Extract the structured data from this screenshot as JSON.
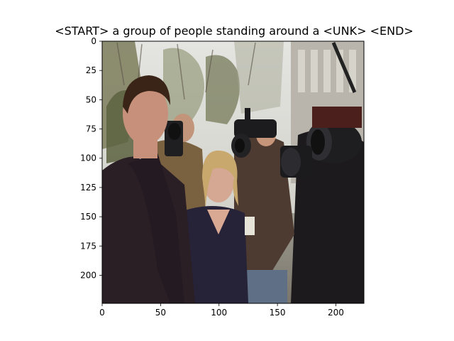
{
  "figure": {
    "title": "<START> a group of people standing around a <UNK> <END>"
  },
  "image_axes": {
    "x_ticks": [
      "0",
      "50",
      "100",
      "150",
      "200"
    ],
    "y_ticks": [
      "0",
      "25",
      "50",
      "75",
      "100",
      "125",
      "150",
      "175",
      "200"
    ],
    "x_range": [
      0,
      224
    ],
    "y_range": [
      0,
      224
    ]
  },
  "photo": {
    "subjects": [
      "man in dark suit and tie",
      "blonde woman in navy top",
      "camera operators",
      "news cameras"
    ],
    "setting": "outdoors, trees and building in background"
  },
  "colors": {
    "suit": "#2b1f26",
    "sky": "#d9dbd6",
    "foliage": "#6f7350",
    "building": "#b9b5ad"
  }
}
